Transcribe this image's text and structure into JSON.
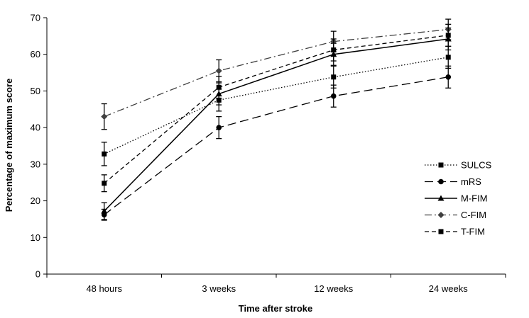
{
  "chart_data": {
    "type": "line",
    "title": "",
    "xlabel": "Time after stroke",
    "ylabel": "Percentage of maximum score",
    "categories": [
      "48 hours",
      "3 weeks",
      "12 weeks",
      "24 weeks"
    ],
    "ylim": [
      0,
      70
    ],
    "yticks": [
      0,
      10,
      20,
      30,
      40,
      50,
      60,
      70
    ],
    "grid": false,
    "legend_position": "right",
    "error_bars": true,
    "series": [
      {
        "name": "SULCS",
        "values": [
          32.8,
          47.5,
          53.8,
          59.2
        ],
        "errors": [
          3.2,
          3.0,
          3.0,
          3.0
        ],
        "marker": "square",
        "dash": "dotted",
        "color": "#000000"
      },
      {
        "name": "mRS",
        "values": [
          16.2,
          40.0,
          48.6,
          53.8
        ],
        "errors": [
          1.5,
          3.0,
          3.0,
          3.0
        ],
        "marker": "circle",
        "dash": "long-dash",
        "color": "#000000"
      },
      {
        "name": "M-FIM",
        "values": [
          17.2,
          49.2,
          60.0,
          64.2
        ],
        "errors": [
          2.3,
          3.0,
          3.0,
          3.0
        ],
        "marker": "triangle",
        "dash": "solid",
        "color": "#000000"
      },
      {
        "name": "C-FIM",
        "values": [
          43.0,
          55.5,
          63.5,
          66.8
        ],
        "errors": [
          3.5,
          3.0,
          2.8,
          2.8
        ],
        "marker": "diamond",
        "dash": "dash-dot",
        "color": "#404040"
      },
      {
        "name": "T-FIM",
        "values": [
          24.8,
          51.0,
          61.2,
          65.2
        ],
        "errors": [
          2.3,
          3.0,
          3.0,
          3.0
        ],
        "marker": "square",
        "dash": "short-dash",
        "color": "#000000"
      }
    ]
  }
}
